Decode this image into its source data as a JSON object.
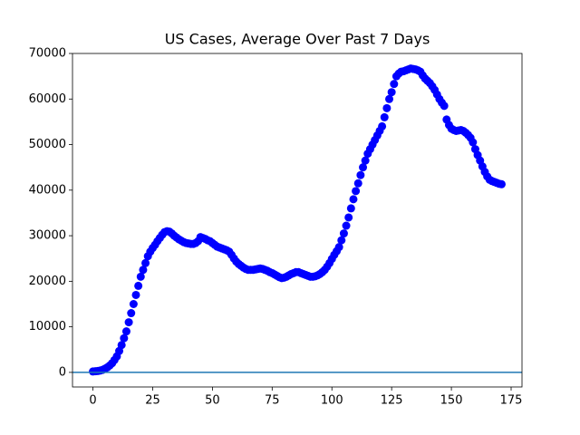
{
  "chart_data": {
    "type": "scatter",
    "title": "US Cases, Average Over Past 7 Days",
    "x": [
      0,
      1,
      2,
      3,
      4,
      5,
      6,
      7,
      8,
      9,
      10,
      11,
      12,
      13,
      14,
      15,
      16,
      17,
      18,
      19,
      20,
      21,
      22,
      23,
      24,
      25,
      26,
      27,
      28,
      29,
      30,
      31,
      32,
      33,
      34,
      35,
      36,
      37,
      38,
      39,
      40,
      41,
      42,
      43,
      44,
      45,
      46,
      47,
      48,
      49,
      50,
      51,
      52,
      53,
      54,
      55,
      56,
      57,
      58,
      59,
      60,
      61,
      62,
      63,
      64,
      65,
      66,
      67,
      68,
      69,
      70,
      71,
      72,
      73,
      74,
      75,
      76,
      77,
      78,
      79,
      80,
      81,
      82,
      83,
      84,
      85,
      86,
      87,
      88,
      89,
      90,
      91,
      92,
      93,
      94,
      95,
      96,
      97,
      98,
      99,
      100,
      101,
      102,
      103,
      104,
      105,
      106,
      107,
      108,
      109,
      110,
      111,
      112,
      113,
      114,
      115,
      116,
      117,
      118,
      119,
      120,
      121,
      122,
      123,
      124,
      125,
      126,
      127,
      128,
      129,
      130,
      131,
      132,
      133,
      134,
      135,
      136,
      137,
      138,
      139,
      140,
      141,
      142,
      143,
      144,
      145,
      146,
      147,
      148,
      149,
      150,
      151,
      152,
      153,
      154,
      155,
      156,
      157,
      158,
      159,
      160,
      161,
      162,
      163,
      164,
      165,
      166,
      167,
      168,
      169,
      170,
      171
    ],
    "y": [
      200,
      250,
      300,
      400,
      550,
      800,
      1100,
      1500,
      2000,
      2700,
      3500,
      4700,
      6000,
      7500,
      9000,
      11000,
      13000,
      15000,
      17000,
      19000,
      21000,
      22500,
      24000,
      25500,
      26500,
      27300,
      28000,
      28800,
      29500,
      30200,
      30800,
      31000,
      30900,
      30500,
      30000,
      29600,
      29200,
      28900,
      28600,
      28400,
      28300,
      28200,
      28200,
      28400,
      28800,
      29700,
      29500,
      29300,
      29000,
      28800,
      28400,
      28000,
      27600,
      27400,
      27200,
      27000,
      26800,
      26500,
      25800,
      25000,
      24300,
      23800,
      23400,
      23000,
      22700,
      22500,
      22500,
      22500,
      22600,
      22700,
      22800,
      22700,
      22500,
      22300,
      22000,
      21800,
      21500,
      21200,
      20900,
      20700,
      20800,
      21000,
      21300,
      21600,
      21800,
      22000,
      22000,
      21800,
      21600,
      21400,
      21200,
      21000,
      21000,
      21100,
      21300,
      21600,
      22000,
      22500,
      23200,
      24000,
      24900,
      25800,
      26600,
      27500,
      29000,
      30500,
      32200,
      34000,
      36000,
      38000,
      39800,
      41500,
      43300,
      45000,
      46500,
      48000,
      49000,
      50000,
      51000,
      52000,
      53000,
      54000,
      56000,
      58000,
      60000,
      61500,
      63300,
      65000,
      65600,
      66000,
      66100,
      66300,
      66500,
      66700,
      66600,
      66500,
      66300,
      66000,
      65200,
      64500,
      64000,
      63500,
      62800,
      62000,
      61000,
      60000,
      59200,
      58500,
      55500,
      54300,
      53500,
      53200,
      53000,
      53100,
      53200,
      53000,
      52600,
      52100,
      51500,
      50500,
      49000,
      47700,
      46500,
      45200,
      44000,
      43000,
      42300,
      42000,
      41800,
      41600,
      41400,
      41300
    ],
    "color": "#0000ff",
    "hline": 0,
    "hline_color": "#1f77b4",
    "xlim": [
      -8.55,
      179.55
    ],
    "ylim": [
      -3200,
      70000
    ],
    "xticks": [
      0,
      25,
      50,
      75,
      100,
      125,
      150,
      175
    ],
    "yticks": [
      0,
      10000,
      20000,
      30000,
      40000,
      50000,
      60000,
      70000
    ]
  }
}
